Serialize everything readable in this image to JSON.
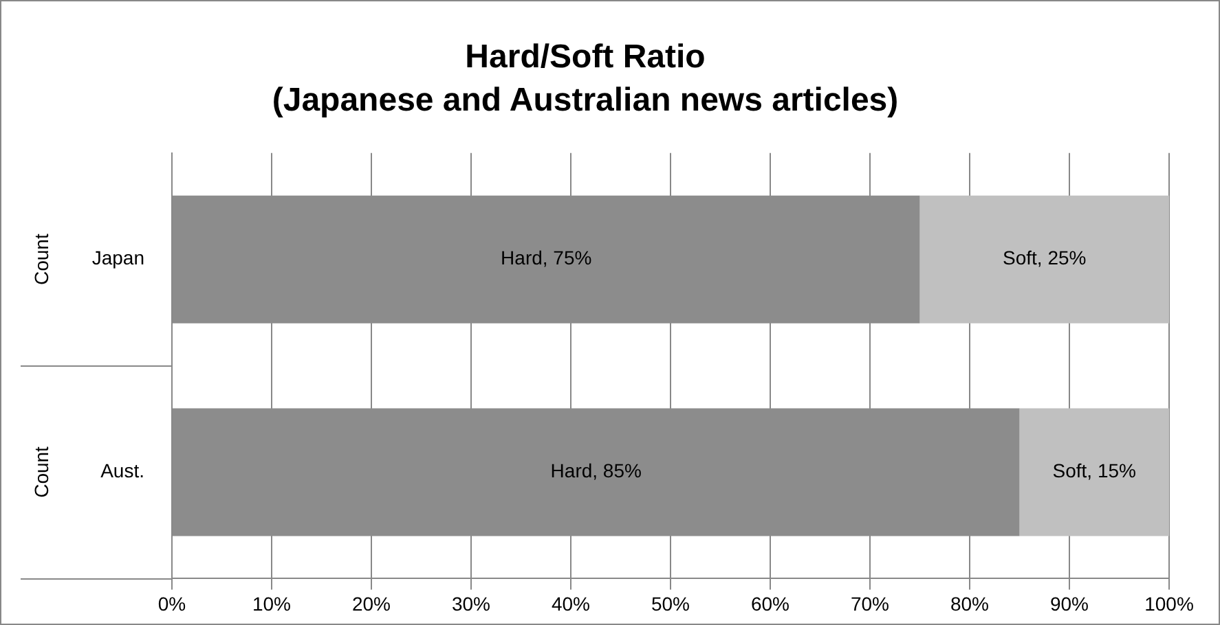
{
  "chart_data": {
    "type": "bar",
    "orientation": "horizontal",
    "stacked": true,
    "title": "Hard/Soft Ratio\n(Japanese and Australian news articles)",
    "categories": [
      "Japan",
      "Aust."
    ],
    "series": [
      {
        "name": "Hard",
        "color": "#8c8c8c",
        "values": [
          75,
          85
        ],
        "value_labels": [
          ", 75%",
          ", 85%"
        ]
      },
      {
        "name": "Soft",
        "color": "#c0c0c0",
        "values": [
          25,
          15
        ],
        "value_labels": [
          ", 25%",
          ", 15%"
        ]
      }
    ],
    "annotations": [
      "Count",
      "Count"
    ],
    "xlim": [
      0,
      100
    ],
    "xticks": [
      {
        "value": 0,
        "label": "0%"
      },
      {
        "value": 10,
        "label": "10%"
      },
      {
        "value": 20,
        "label": "20%"
      },
      {
        "value": 30,
        "label": "30%"
      },
      {
        "value": 40,
        "label": "40%"
      },
      {
        "value": 50,
        "label": "50%"
      },
      {
        "value": 60,
        "label": "60%"
      },
      {
        "value": 70,
        "label": "70%"
      },
      {
        "value": 80,
        "label": "80%"
      },
      {
        "value": 90,
        "label": "90%"
      },
      {
        "value": 100,
        "label": "100%"
      }
    ],
    "grid": "x",
    "legend": false
  }
}
